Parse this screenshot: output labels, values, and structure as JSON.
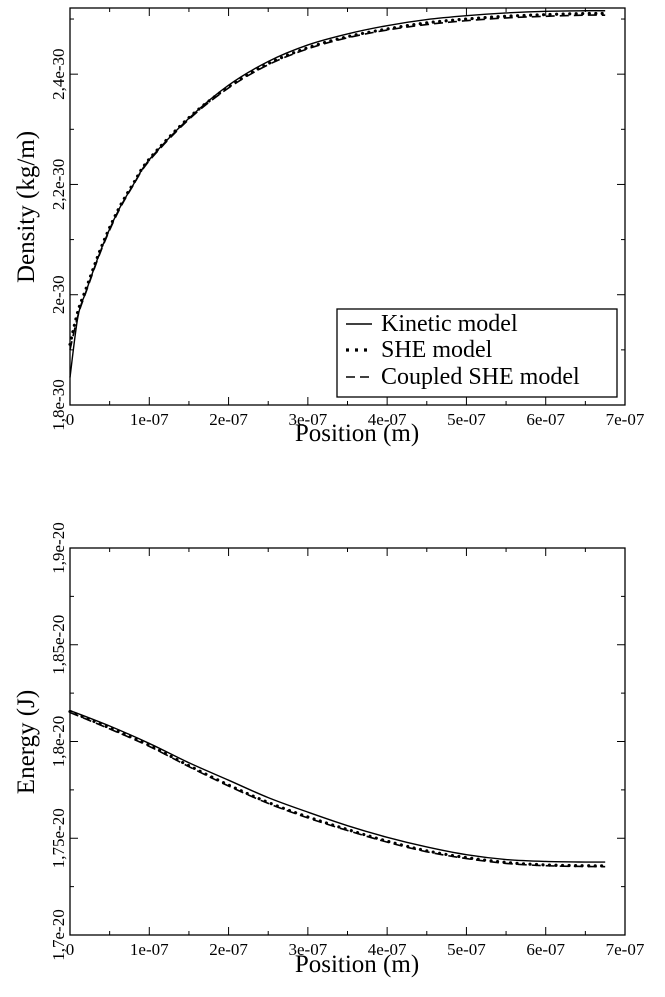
{
  "chart_data": [
    {
      "type": "line",
      "xlabel": "Position (m)",
      "ylabel": "Density (kg/m)",
      "xlim": [
        0,
        7e-07
      ],
      "ylim": [
        1.8e-30,
        2.52e-30
      ],
      "xticks": [
        0,
        1e-07,
        2e-07,
        3e-07,
        4e-07,
        5e-07,
        6e-07,
        7e-07
      ],
      "xtick_labels": [
        "0",
        "1e-07",
        "2e-07",
        "3e-07",
        "4e-07",
        "5e-07",
        "6e-07",
        "7e-07"
      ],
      "yticks": [
        1.8e-30,
        2e-30,
        2.2e-30,
        2.4e-30
      ],
      "ytick_labels": [
        "1,8e-30",
        "2e-30",
        "2,2e-30",
        "2,4e-30"
      ],
      "legend_position": "bottom-right",
      "grid": false,
      "series": [
        {
          "name": "Kinetic model",
          "style": "solid",
          "x": [
            0,
            1e-08,
            2e-08,
            4e-08,
            6e-08,
            8e-08,
            1e-07,
            1.5e-07,
            2e-07,
            2.5e-07,
            3e-07,
            3.5e-07,
            4e-07,
            4.5e-07,
            5e-07,
            5.5e-07,
            6e-07,
            6.5e-07,
            6.75e-07
          ],
          "values": [
            1.85e-30,
            1.96e-30,
            2.005e-30,
            2.085e-30,
            2.15e-30,
            2.2e-30,
            2.245e-30,
            2.32e-30,
            2.38e-30,
            2.423e-30,
            2.453e-30,
            2.473e-30,
            2.488e-30,
            2.499e-30,
            2.506e-30,
            2.511e-30,
            2.514e-30,
            2.515e-30,
            2.515e-30
          ]
        },
        {
          "name": "SHE model",
          "style": "dotted",
          "x": [
            0,
            1e-08,
            2e-08,
            4e-08,
            6e-08,
            8e-08,
            1e-07,
            1.5e-07,
            2e-07,
            2.5e-07,
            3e-07,
            3.5e-07,
            4e-07,
            4.5e-07,
            5e-07,
            5.5e-07,
            6e-07,
            6.5e-07,
            6.75e-07
          ],
          "values": [
            1.91e-30,
            1.97e-30,
            2.01e-30,
            2.088e-30,
            2.152e-30,
            2.202e-30,
            2.246e-30,
            2.321e-30,
            2.377e-30,
            2.419e-30,
            2.448e-30,
            2.468e-30,
            2.482e-30,
            2.493e-30,
            2.5e-30,
            2.505e-30,
            2.508e-30,
            2.51e-30,
            2.51e-30
          ]
        },
        {
          "name": "Coupled SHE model",
          "style": "dashed",
          "x": [
            0,
            1e-08,
            2e-08,
            4e-08,
            6e-08,
            8e-08,
            1e-07,
            1.5e-07,
            2e-07,
            2.5e-07,
            3e-07,
            3.5e-07,
            4e-07,
            4.5e-07,
            5e-07,
            5.5e-07,
            6e-07,
            6.5e-07,
            6.75e-07
          ],
          "values": [
            1.9e-30,
            1.962e-30,
            2.004e-30,
            2.083e-30,
            2.148e-30,
            2.199e-30,
            2.243e-30,
            2.318e-30,
            2.375e-30,
            2.417e-30,
            2.446e-30,
            2.466e-30,
            2.48e-30,
            2.49e-30,
            2.497e-30,
            2.502e-30,
            2.505e-30,
            2.507e-30,
            2.507e-30
          ]
        }
      ]
    },
    {
      "type": "line",
      "xlabel": "Position (m)",
      "ylabel": "Energy (J)",
      "xlim": [
        0,
        7e-07
      ],
      "ylim": [
        1.7e-20,
        1.9e-20
      ],
      "xticks": [
        0,
        1e-07,
        2e-07,
        3e-07,
        4e-07,
        5e-07,
        6e-07,
        7e-07
      ],
      "xtick_labels": [
        "0",
        "1e-07",
        "2e-07",
        "3e-07",
        "4e-07",
        "5e-07",
        "6e-07",
        "7e-07"
      ],
      "yticks": [
        1.7e-20,
        1.75e-20,
        1.8e-20,
        1.85e-20,
        1.9e-20
      ],
      "ytick_labels": [
        "1,7e-20",
        "1,75e-20",
        "1,8e-20",
        "1,85e-20",
        "1,9e-20"
      ],
      "grid": false,
      "series": [
        {
          "name": "Kinetic model",
          "style": "solid",
          "x": [
            0,
            5e-08,
            1e-07,
            1.5e-07,
            2e-07,
            2.5e-07,
            3e-07,
            3.5e-07,
            4e-07,
            4.5e-07,
            5e-07,
            5.5e-07,
            6e-07,
            6.5e-07,
            6.75e-07
          ],
          "values": [
            1.816e-20,
            1.808e-20,
            1.799e-20,
            1.789e-20,
            1.78e-20,
            1.771e-20,
            1.7635e-20,
            1.7565e-20,
            1.7505e-20,
            1.7455e-20,
            1.7415e-20,
            1.739e-20,
            1.738e-20,
            1.7377e-20,
            1.7377e-20
          ]
        },
        {
          "name": "SHE model",
          "style": "dotted",
          "x": [
            0,
            5e-08,
            1e-07,
            1.5e-07,
            2e-07,
            2.5e-07,
            3e-07,
            3.5e-07,
            4e-07,
            4.5e-07,
            5e-07,
            5.5e-07,
            6e-07,
            6.5e-07,
            6.75e-07
          ],
          "values": [
            1.8155e-20,
            1.807e-20,
            1.798e-20,
            1.7875e-20,
            1.7775e-20,
            1.7685e-20,
            1.761e-20,
            1.7545e-20,
            1.7485e-20,
            1.7435e-20,
            1.74e-20,
            1.7375e-20,
            1.7362e-20,
            1.7358e-20,
            1.7357e-20
          ]
        },
        {
          "name": "Coupled SHE model",
          "style": "dashed",
          "x": [
            0,
            5e-08,
            1e-07,
            1.5e-07,
            2e-07,
            2.5e-07,
            3e-07,
            3.5e-07,
            4e-07,
            4.5e-07,
            5e-07,
            5.5e-07,
            6e-07,
            6.5e-07,
            6.75e-07
          ],
          "values": [
            1.815e-20,
            1.8065e-20,
            1.7975e-20,
            1.787e-20,
            1.777e-20,
            1.768e-20,
            1.7605e-20,
            1.754e-20,
            1.748e-20,
            1.743e-20,
            1.7395e-20,
            1.737e-20,
            1.7358e-20,
            1.7354e-20,
            1.7353e-20
          ]
        }
      ]
    }
  ]
}
